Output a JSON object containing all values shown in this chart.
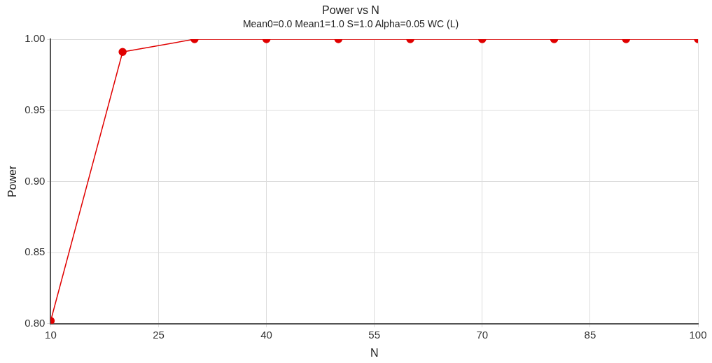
{
  "chart_data": {
    "type": "line",
    "title": "Power vs N",
    "subtitle": "Mean0=0.0 Mean1=1.0 S=1.0 Alpha=0.05 WC (L)",
    "xlabel": "N",
    "ylabel": "Power",
    "x": [
      10,
      20,
      30,
      40,
      50,
      60,
      70,
      80,
      90,
      100
    ],
    "series": [
      {
        "color": "#e00000",
        "values": [
          0.802,
          0.991,
          1.0,
          1.0,
          1.0,
          1.0,
          1.0,
          1.0,
          1.0,
          1.0
        ]
      }
    ],
    "xlim": [
      10,
      100
    ],
    "xticks": [
      10,
      25,
      40,
      55,
      70,
      85,
      100
    ],
    "ylim": [
      0.8,
      1.0
    ],
    "yticks": [
      {
        "value": 0.8,
        "label": "0.80"
      },
      {
        "value": 0.85,
        "label": "0.85"
      },
      {
        "value": 0.9,
        "label": "0.90"
      },
      {
        "value": 0.95,
        "label": "0.95"
      },
      {
        "value": 1.0,
        "label": "1.00"
      }
    ],
    "grid": true,
    "legend": false,
    "marker": "circle",
    "line_style": "solid"
  }
}
